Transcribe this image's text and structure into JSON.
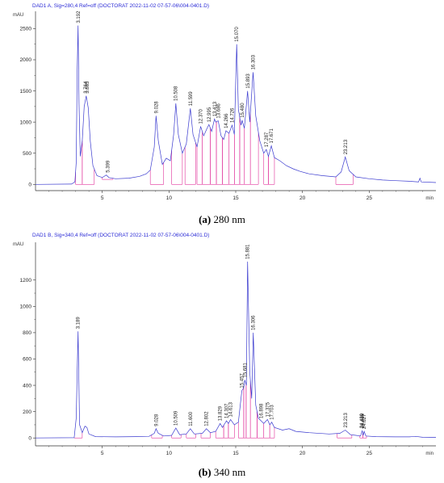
{
  "chart_data": [
    {
      "type": "line",
      "header": "DAD1 A, Sig=280,4 Ref=off (DOCTORAT 2022-11-02 07-57-06\\004-0401.D)",
      "ylabel": "mAU",
      "xlabel": "min",
      "xlim": [
        0,
        30
      ],
      "ylim": [
        -100,
        2700
      ],
      "xticks": [
        5,
        10,
        15,
        20,
        25
      ],
      "yticks": [
        0,
        500,
        1000,
        1500,
        2000,
        2500
      ],
      "caption_letter": "(a)",
      "caption_text": " 280 nm",
      "series_color": "#3a3acf",
      "integration_color": "#e0309a",
      "trace": [
        [
          0,
          0
        ],
        [
          2.7,
          5
        ],
        [
          2.95,
          40
        ],
        [
          3.05,
          350
        ],
        [
          3.12,
          1800
        ],
        [
          3.19,
          2550
        ],
        [
          3.26,
          1300
        ],
        [
          3.35,
          450
        ],
        [
          3.5,
          700
        ],
        [
          3.65,
          1250
        ],
        [
          3.8,
          1420
        ],
        [
          3.95,
          1230
        ],
        [
          4.1,
          700
        ],
        [
          4.3,
          300
        ],
        [
          4.6,
          140
        ],
        [
          5.0,
          110
        ],
        [
          5.3,
          150
        ],
        [
          5.5,
          110
        ],
        [
          6.0,
          90
        ],
        [
          7.0,
          100
        ],
        [
          7.8,
          130
        ],
        [
          8.3,
          170
        ],
        [
          8.6,
          230
        ],
        [
          8.9,
          600
        ],
        [
          9.03,
          1100
        ],
        [
          9.2,
          700
        ],
        [
          9.5,
          320
        ],
        [
          9.8,
          420
        ],
        [
          10.1,
          380
        ],
        [
          10.35,
          800
        ],
        [
          10.51,
          1300
        ],
        [
          10.7,
          800
        ],
        [
          11.0,
          500
        ],
        [
          11.3,
          650
        ],
        [
          11.6,
          1220
        ],
        [
          11.8,
          800
        ],
        [
          12.1,
          600
        ],
        [
          12.37,
          930
        ],
        [
          12.6,
          780
        ],
        [
          12.85,
          900
        ],
        [
          12.99,
          960
        ],
        [
          13.2,
          850
        ],
        [
          13.41,
          1050
        ],
        [
          13.5,
          1000
        ],
        [
          13.69,
          1020
        ],
        [
          13.9,
          780
        ],
        [
          14.1,
          720
        ],
        [
          14.27,
          860
        ],
        [
          14.5,
          820
        ],
        [
          14.73,
          950
        ],
        [
          14.9,
          800
        ],
        [
          15.07,
          2250
        ],
        [
          15.2,
          1200
        ],
        [
          15.4,
          950
        ],
        [
          15.48,
          1030
        ],
        [
          15.65,
          900
        ],
        [
          15.89,
          1500
        ],
        [
          16.05,
          1000
        ],
        [
          16.3,
          1800
        ],
        [
          16.5,
          1100
        ],
        [
          16.8,
          700
        ],
        [
          17.1,
          500
        ],
        [
          17.29,
          560
        ],
        [
          17.45,
          450
        ],
        [
          17.67,
          620
        ],
        [
          17.9,
          430
        ],
        [
          18.3,
          380
        ],
        [
          18.8,
          300
        ],
        [
          19.3,
          250
        ],
        [
          19.8,
          210
        ],
        [
          20.5,
          170
        ],
        [
          21.5,
          140
        ],
        [
          22.5,
          120
        ],
        [
          22.9,
          200
        ],
        [
          23.21,
          440
        ],
        [
          23.5,
          220
        ],
        [
          24.0,
          120
        ],
        [
          25.0,
          90
        ],
        [
          26.0,
          70
        ],
        [
          27.0,
          60
        ],
        [
          28.0,
          50
        ],
        [
          28.7,
          40
        ],
        [
          28.8,
          100
        ],
        [
          28.9,
          40
        ],
        [
          30,
          30
        ]
      ],
      "peaks": [
        {
          "label": "3.192",
          "x": 3.192,
          "y": 2550
        },
        {
          "label": "3.764",
          "x": 3.764,
          "y": 1420
        },
        {
          "label": "3.865",
          "x": 3.865,
          "y": 1420
        },
        {
          "label": "5.399",
          "x": 5.399,
          "y": 150
        },
        {
          "label": "9.028",
          "x": 9.028,
          "y": 1100
        },
        {
          "label": "10.508",
          "x": 10.508,
          "y": 1300
        },
        {
          "label": "11.599",
          "x": 11.599,
          "y": 1220
        },
        {
          "label": "12.370",
          "x": 12.37,
          "y": 930
        },
        {
          "label": "12.995",
          "x": 12.995,
          "y": 960
        },
        {
          "label": "13.413",
          "x": 13.413,
          "y": 1050
        },
        {
          "label": "13.686",
          "x": 13.686,
          "y": 1020
        },
        {
          "label": "14.266",
          "x": 14.266,
          "y": 860
        },
        {
          "label": "14.726",
          "x": 14.726,
          "y": 950
        },
        {
          "label": "15.070",
          "x": 15.07,
          "y": 2250
        },
        {
          "label": "15.480",
          "x": 15.48,
          "y": 1030
        },
        {
          "label": "15.893",
          "x": 15.893,
          "y": 1500
        },
        {
          "label": "16.303",
          "x": 16.303,
          "y": 1800
        },
        {
          "label": "17.287",
          "x": 17.287,
          "y": 560
        },
        {
          "label": "17.671",
          "x": 17.671,
          "y": 620
        },
        {
          "label": "23.213",
          "x": 23.213,
          "y": 440
        }
      ],
      "segments": [
        [
          3.0,
          3.5,
          0,
          0
        ],
        [
          3.5,
          4.4,
          0,
          0
        ],
        [
          5.0,
          5.8,
          80,
          80
        ],
        [
          8.6,
          9.6,
          0,
          0
        ],
        [
          10.2,
          11.0,
          0,
          0
        ],
        [
          11.2,
          12.0,
          0,
          0
        ],
        [
          12.1,
          12.5,
          0,
          0
        ],
        [
          12.5,
          13.1,
          0,
          0
        ],
        [
          13.1,
          13.55,
          0,
          0
        ],
        [
          13.55,
          14.0,
          0,
          0
        ],
        [
          14.0,
          14.5,
          0,
          0
        ],
        [
          14.5,
          14.9,
          0,
          0
        ],
        [
          14.9,
          15.3,
          0,
          0
        ],
        [
          15.3,
          15.65,
          0,
          0
        ],
        [
          15.65,
          16.1,
          0,
          0
        ],
        [
          16.1,
          16.7,
          0,
          0
        ],
        [
          17.1,
          17.45,
          0,
          0
        ],
        [
          17.45,
          17.9,
          0,
          0
        ],
        [
          22.5,
          23.8,
          0,
          0
        ]
      ]
    },
    {
      "type": "line",
      "header": "DAD1 B, Sig=340,4 Ref=off (DOCTORAT 2022-11-02 07-57-06\\004-0401.D)",
      "ylabel": "mAU",
      "xlabel": "min",
      "xlim": [
        0,
        30
      ],
      "ylim": [
        -60,
        1450
      ],
      "xticks": [
        5,
        10,
        15,
        20,
        25
      ],
      "yticks": [
        0,
        200,
        400,
        600,
        800,
        1000,
        1200
      ],
      "caption_letter": "(b)",
      "caption_text": " 340 nm",
      "series_color": "#3a3acf",
      "integration_color": "#e0309a",
      "trace": [
        [
          0,
          0
        ],
        [
          2.9,
          2
        ],
        [
          3.05,
          150
        ],
        [
          3.19,
          810
        ],
        [
          3.3,
          100
        ],
        [
          3.5,
          40
        ],
        [
          3.7,
          90
        ],
        [
          3.85,
          80
        ],
        [
          4.0,
          30
        ],
        [
          4.5,
          10
        ],
        [
          6.0,
          8
        ],
        [
          7.5,
          10
        ],
        [
          8.5,
          12
        ],
        [
          8.9,
          35
        ],
        [
          9.03,
          70
        ],
        [
          9.2,
          35
        ],
        [
          9.6,
          15
        ],
        [
          10.2,
          20
        ],
        [
          10.51,
          75
        ],
        [
          10.8,
          25
        ],
        [
          11.3,
          30
        ],
        [
          11.6,
          70
        ],
        [
          11.9,
          30
        ],
        [
          12.5,
          35
        ],
        [
          12.8,
          70
        ],
        [
          13.1,
          40
        ],
        [
          13.5,
          50
        ],
        [
          13.83,
          110
        ],
        [
          14.0,
          80
        ],
        [
          14.31,
          130
        ],
        [
          14.45,
          110
        ],
        [
          14.61,
          140
        ],
        [
          14.9,
          100
        ],
        [
          15.2,
          120
        ],
        [
          15.46,
          360
        ],
        [
          15.6,
          380
        ],
        [
          15.68,
          440
        ],
        [
          15.8,
          400
        ],
        [
          15.89,
          1340
        ],
        [
          16.05,
          500
        ],
        [
          16.2,
          300
        ],
        [
          16.31,
          800
        ],
        [
          16.5,
          250
        ],
        [
          16.7,
          150
        ],
        [
          16.9,
          130
        ],
        [
          17.1,
          110
        ],
        [
          17.38,
          140
        ],
        [
          17.55,
          100
        ],
        [
          17.7,
          120
        ],
        [
          17.9,
          80
        ],
        [
          18.5,
          60
        ],
        [
          19.0,
          70
        ],
        [
          19.5,
          50
        ],
        [
          20.5,
          40
        ],
        [
          22.0,
          30
        ],
        [
          22.8,
          35
        ],
        [
          23.21,
          60
        ],
        [
          23.6,
          25
        ],
        [
          24.0,
          20
        ],
        [
          24.35,
          15
        ],
        [
          24.48,
          55
        ],
        [
          24.55,
          20
        ],
        [
          24.62,
          50
        ],
        [
          24.75,
          15
        ],
        [
          25.5,
          10
        ],
        [
          27.0,
          8
        ],
        [
          28.0,
          8
        ],
        [
          28.5,
          12
        ],
        [
          29.0,
          5
        ],
        [
          30,
          4
        ]
      ],
      "peaks": [
        {
          "label": "3.189",
          "x": 3.189,
          "y": 810
        },
        {
          "label": "9.028",
          "x": 9.028,
          "y": 70
        },
        {
          "label": "10.509",
          "x": 10.509,
          "y": 75
        },
        {
          "label": "11.600",
          "x": 11.6,
          "y": 70
        },
        {
          "label": "12.802",
          "x": 12.802,
          "y": 70
        },
        {
          "label": "13.829",
          "x": 13.829,
          "y": 110
        },
        {
          "label": "14.307",
          "x": 14.307,
          "y": 130
        },
        {
          "label": "14.613",
          "x": 14.613,
          "y": 140
        },
        {
          "label": "15.457",
          "x": 15.457,
          "y": 360
        },
        {
          "label": "15.681",
          "x": 15.681,
          "y": 440
        },
        {
          "label": "15.881",
          "x": 15.881,
          "y": 1340
        },
        {
          "label": "16.306",
          "x": 16.306,
          "y": 800
        },
        {
          "label": "16.898",
          "x": 16.898,
          "y": 130
        },
        {
          "label": "17.375",
          "x": 17.375,
          "y": 140
        },
        {
          "label": "17.703",
          "x": 17.703,
          "y": 120
        },
        {
          "label": "23.213",
          "x": 23.213,
          "y": 60
        },
        {
          "label": "24.439",
          "x": 24.439,
          "y": 55
        },
        {
          "label": "24.489",
          "x": 24.489,
          "y": 55
        },
        {
          "label": "24.627",
          "x": 24.627,
          "y": 50
        }
      ],
      "segments": [
        [
          2.9,
          3.5,
          0,
          0
        ],
        [
          8.7,
          9.5,
          0,
          0
        ],
        [
          10.2,
          10.9,
          0,
          0
        ],
        [
          11.3,
          12.0,
          0,
          0
        ],
        [
          12.4,
          13.1,
          0,
          0
        ],
        [
          13.5,
          14.1,
          0,
          0
        ],
        [
          14.1,
          14.45,
          0,
          0
        ],
        [
          14.45,
          14.9,
          0,
          0
        ],
        [
          15.2,
          15.6,
          0,
          0
        ],
        [
          15.6,
          15.78,
          0,
          0
        ],
        [
          15.78,
          16.1,
          0,
          0
        ],
        [
          16.1,
          16.6,
          0,
          0
        ],
        [
          16.6,
          17.1,
          0,
          0
        ],
        [
          17.1,
          17.55,
          0,
          0
        ],
        [
          17.55,
          17.9,
          0,
          0
        ],
        [
          22.6,
          23.7,
          0,
          0
        ],
        [
          24.3,
          24.52,
          0,
          0
        ],
        [
          24.52,
          24.8,
          0,
          0
        ]
      ]
    }
  ]
}
